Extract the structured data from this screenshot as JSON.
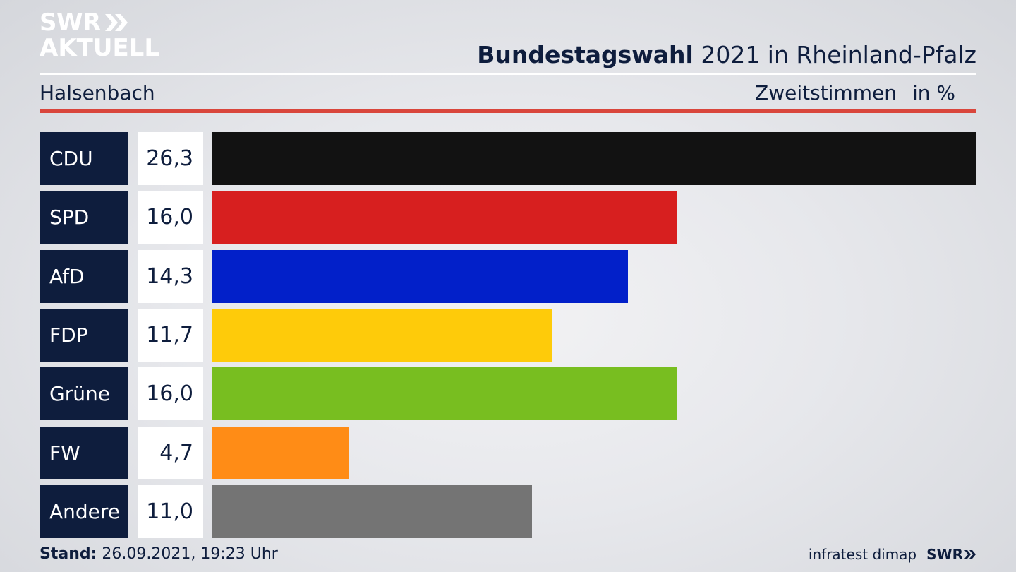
{
  "brand": {
    "line1": "SWR",
    "line2": "AKTUELL",
    "small": "SWR"
  },
  "header": {
    "title_bold": "Bundestagswahl",
    "title_rest": " 2021 in Rheinland-Pfalz",
    "region": "Halsenbach",
    "measure": "Zweitstimmen",
    "unit": "in %"
  },
  "footer": {
    "stand_label": "Stand:",
    "stand_value": " 26.09.2021, 19:23 Uhr",
    "source": "infratest dimap"
  },
  "colors": {
    "navy": "#0e1d3d",
    "red_rule": "#d9463c"
  },
  "chart_data": {
    "type": "bar",
    "orientation": "horizontal",
    "categories": [
      "CDU",
      "SPD",
      "AfD",
      "FDP",
      "Grüne",
      "FW",
      "Andere"
    ],
    "values": [
      26.3,
      16.0,
      14.3,
      11.7,
      16.0,
      4.7,
      11.0
    ],
    "value_labels": [
      "26,3",
      "16,0",
      "14,3",
      "11,7",
      "16,0",
      "4,7",
      "11,0"
    ],
    "colors": [
      "#121212",
      "#d71f1f",
      "#0220c9",
      "#fecb0a",
      "#78be20",
      "#ff8c16",
      "#747474"
    ],
    "xlim": [
      0,
      26.3
    ]
  }
}
